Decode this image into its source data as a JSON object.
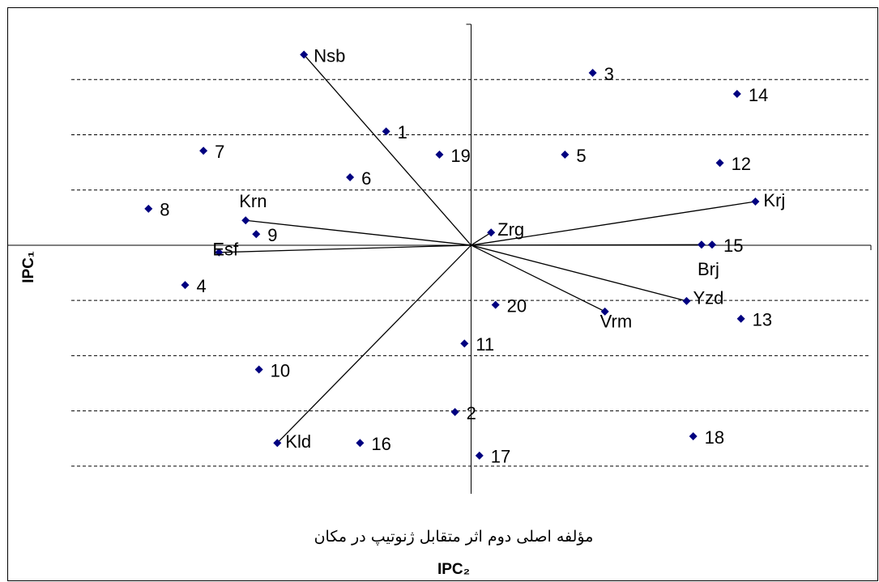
{
  "chart_data": {
    "type": "biplot",
    "xlabel_note": "مؤلفه اصلی دوم اثر متقابل ژنوتیپ در مکان",
    "xlabel": "IPC₂",
    "ylabel": "IPC₁",
    "color": "#000080",
    "line_color": "#000000",
    "xlim": [
      -7.2,
      7.2
    ],
    "ylim": [
      -4.5,
      4
    ],
    "yticks": [
      -4,
      -3,
      -2,
      -1,
      1,
      2,
      3
    ],
    "grid": true,
    "points": {
      "labels": [
        "1",
        "2",
        "3",
        "4",
        "5",
        "6",
        "7",
        "8",
        "9",
        "10",
        "11",
        "12",
        "13",
        "14",
        "15",
        "16",
        "17",
        "18",
        "19",
        "20"
      ],
      "x": [
        -1.53,
        -0.29,
        2.19,
        -5.15,
        1.69,
        -2.18,
        -4.82,
        -5.81,
        -3.87,
        -3.82,
        -0.12,
        4.48,
        4.86,
        4.79,
        4.34,
        -2.0,
        0.15,
        4.0,
        -0.57,
        0.44
      ],
      "y": [
        2.06,
        -3.02,
        3.12,
        -0.72,
        1.64,
        1.23,
        1.71,
        0.66,
        0.2,
        -2.25,
        -1.78,
        1.49,
        -1.33,
        2.74,
        0.01,
        -3.58,
        -3.81,
        -3.46,
        1.64,
        -1.08
      ]
    },
    "vectors": {
      "labels": [
        "Nsb",
        "Krn",
        "Esf",
        "Zrg",
        "Krj",
        "Brj",
        "Yzd",
        "Vrm",
        "Kld"
      ],
      "x": [
        -3.01,
        -4.06,
        -4.54,
        0.36,
        5.12,
        4.15,
        3.88,
        2.41,
        -3.49
      ],
      "y": [
        3.45,
        0.45,
        -0.13,
        0.23,
        0.79,
        0.01,
        -1.01,
        -1.2,
        -3.58
      ]
    }
  }
}
